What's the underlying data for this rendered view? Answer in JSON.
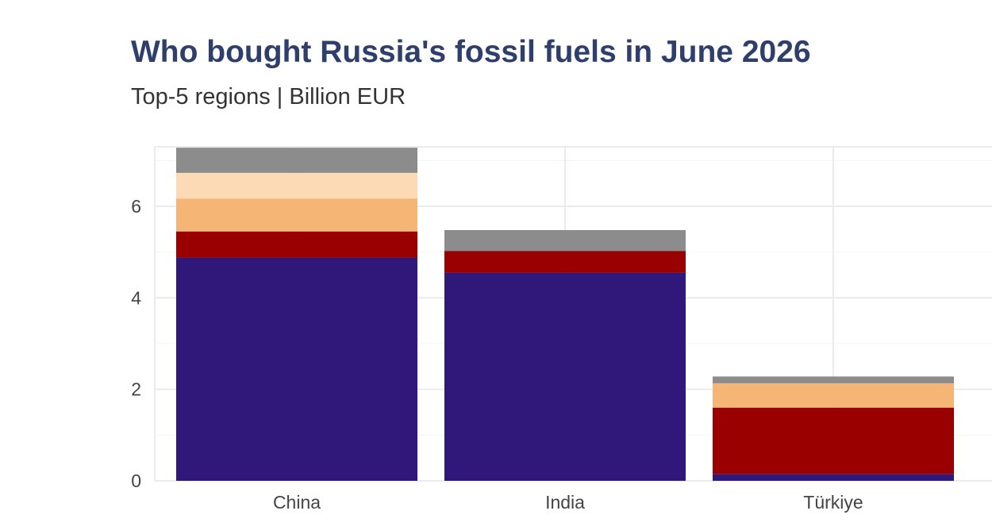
{
  "chart_data": {
    "type": "bar",
    "stacked": true,
    "title": "Who bought Russia's fossil fuels in June 2026",
    "subtitle": "Top-5 regions | Billion EUR",
    "xlabel": "",
    "ylabel": "",
    "categories": [
      "China",
      "India",
      "Türkiye"
    ],
    "ylim": [
      0,
      7.3
    ],
    "yticks": [
      0,
      2,
      4,
      6
    ],
    "grid": true,
    "legend": "none",
    "series": [
      {
        "color": "#30187a",
        "values": [
          4.88,
          4.55,
          0.15
        ]
      },
      {
        "color": "#9b0000",
        "values": [
          0.57,
          0.47,
          1.45
        ]
      },
      {
        "color": "#f5b574",
        "values": [
          0.72,
          0.0,
          0.53
        ]
      },
      {
        "color": "#fcdab6",
        "values": [
          0.56,
          0.0,
          0.0
        ]
      },
      {
        "color": "#8c8c8c",
        "values": [
          0.55,
          0.46,
          0.15
        ]
      }
    ]
  }
}
